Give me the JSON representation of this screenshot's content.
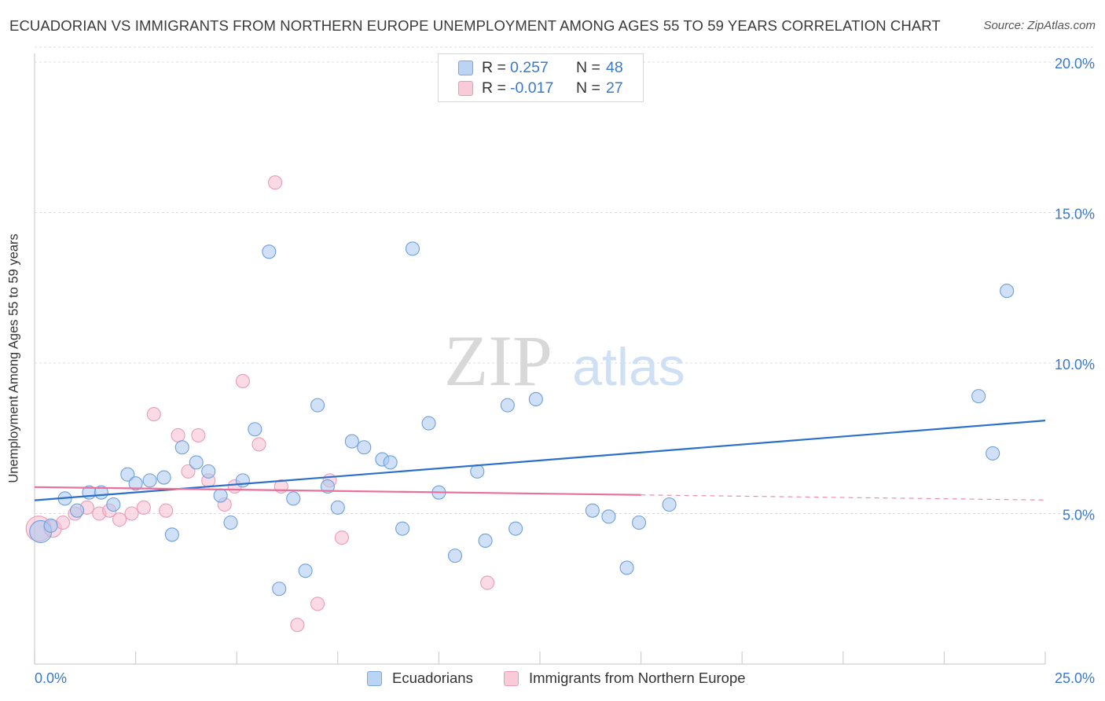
{
  "title": "ECUADORIAN VS IMMIGRANTS FROM NORTHERN EUROPE UNEMPLOYMENT AMONG AGES 55 TO 59 YEARS CORRELATION CHART",
  "source": "Source: ZipAtlas.com",
  "watermark": {
    "zip": "ZIP",
    "atlas": "atlas"
  },
  "legend": {
    "rows": [
      {
        "r_label": "R =",
        "r_value": "0.257",
        "n_label": "N =",
        "n_value": "48"
      },
      {
        "r_label": "R =",
        "r_value": "-0.017",
        "n_label": "N =",
        "n_value": "27"
      }
    ]
  },
  "chart_data": {
    "type": "scatter",
    "title": "ECUADORIAN VS IMMIGRANTS FROM NORTHERN EUROPE UNEMPLOYMENT AMONG AGES 55 TO 59 YEARS CORRELATION CHART",
    "xlabel": "",
    "ylabel": "Unemployment Among Ages 55 to 59 years",
    "xlim": [
      0,
      25
    ],
    "ylim": [
      0,
      20
    ],
    "x_tick_labels": [
      "0.0%",
      "25.0%"
    ],
    "y_ticks": [
      5,
      10,
      15,
      20
    ],
    "y_tick_labels": [
      "5.0%",
      "10.0%",
      "15.0%",
      "20.0%"
    ],
    "grid": "horizontal dashed",
    "legend_position": "top-center and bottom",
    "series": [
      {
        "name": "Ecuadorians",
        "color": "#a9c8f0",
        "line_color": "#2b6fcc",
        "trend": {
          "x": [
            0,
            25
          ],
          "y": [
            5.44,
            8.09
          ]
        },
        "points": [
          [
            0.15,
            4.4
          ],
          [
            0.4,
            4.6
          ],
          [
            0.75,
            5.5
          ],
          [
            1.05,
            5.1
          ],
          [
            1.35,
            5.7
          ],
          [
            1.65,
            5.7
          ],
          [
            1.95,
            5.3
          ],
          [
            2.3,
            6.3
          ],
          [
            2.5,
            6.0
          ],
          [
            2.85,
            6.1
          ],
          [
            3.2,
            6.2
          ],
          [
            3.4,
            4.3
          ],
          [
            3.65,
            7.2
          ],
          [
            4.0,
            6.7
          ],
          [
            4.3,
            6.4
          ],
          [
            4.6,
            5.6
          ],
          [
            4.85,
            4.7
          ],
          [
            5.15,
            6.1
          ],
          [
            5.45,
            7.8
          ],
          [
            5.8,
            13.7
          ],
          [
            6.05,
            2.5
          ],
          [
            6.4,
            5.5
          ],
          [
            6.7,
            3.1
          ],
          [
            7.0,
            8.6
          ],
          [
            7.25,
            5.9
          ],
          [
            7.5,
            5.2
          ],
          [
            7.85,
            7.4
          ],
          [
            8.15,
            7.2
          ],
          [
            8.6,
            6.8
          ],
          [
            8.8,
            6.7
          ],
          [
            9.1,
            4.5
          ],
          [
            9.35,
            13.8
          ],
          [
            9.75,
            8.0
          ],
          [
            10.0,
            5.7
          ],
          [
            10.4,
            3.6
          ],
          [
            10.95,
            6.4
          ],
          [
            11.15,
            4.1
          ],
          [
            11.7,
            8.6
          ],
          [
            11.9,
            4.5
          ],
          [
            12.4,
            8.8
          ],
          [
            13.8,
            5.1
          ],
          [
            14.2,
            4.9
          ],
          [
            14.65,
            3.2
          ],
          [
            14.95,
            4.7
          ],
          [
            15.7,
            5.3
          ],
          [
            23.35,
            8.9
          ],
          [
            23.7,
            7.0
          ],
          [
            24.05,
            12.4
          ]
        ]
      },
      {
        "name": "Immigrants from Northern Europe",
        "color": "#f6bccd",
        "line_color": "#e8709a",
        "trend": {
          "x": [
            0,
            15
          ],
          "y": [
            5.88,
            5.62
          ]
        },
        "trend_dashed": {
          "x": [
            15,
            25
          ],
          "y": [
            5.62,
            5.45
          ]
        },
        "points": [
          [
            0.1,
            4.5
          ],
          [
            0.45,
            4.5
          ],
          [
            0.7,
            4.7
          ],
          [
            1.0,
            5.0
          ],
          [
            1.3,
            5.2
          ],
          [
            1.6,
            5.0
          ],
          [
            1.85,
            5.1
          ],
          [
            2.1,
            4.8
          ],
          [
            2.4,
            5.0
          ],
          [
            2.7,
            5.2
          ],
          [
            2.95,
            8.3
          ],
          [
            3.25,
            5.1
          ],
          [
            3.55,
            7.6
          ],
          [
            3.8,
            6.4
          ],
          [
            4.05,
            7.6
          ],
          [
            4.3,
            6.1
          ],
          [
            4.7,
            5.3
          ],
          [
            4.95,
            5.9
          ],
          [
            5.15,
            9.4
          ],
          [
            5.55,
            7.3
          ],
          [
            5.95,
            16.0
          ],
          [
            6.1,
            5.9
          ],
          [
            6.5,
            1.3
          ],
          [
            7.0,
            2.0
          ],
          [
            7.3,
            6.1
          ],
          [
            7.6,
            4.2
          ],
          [
            11.2,
            2.7
          ]
        ]
      }
    ]
  }
}
